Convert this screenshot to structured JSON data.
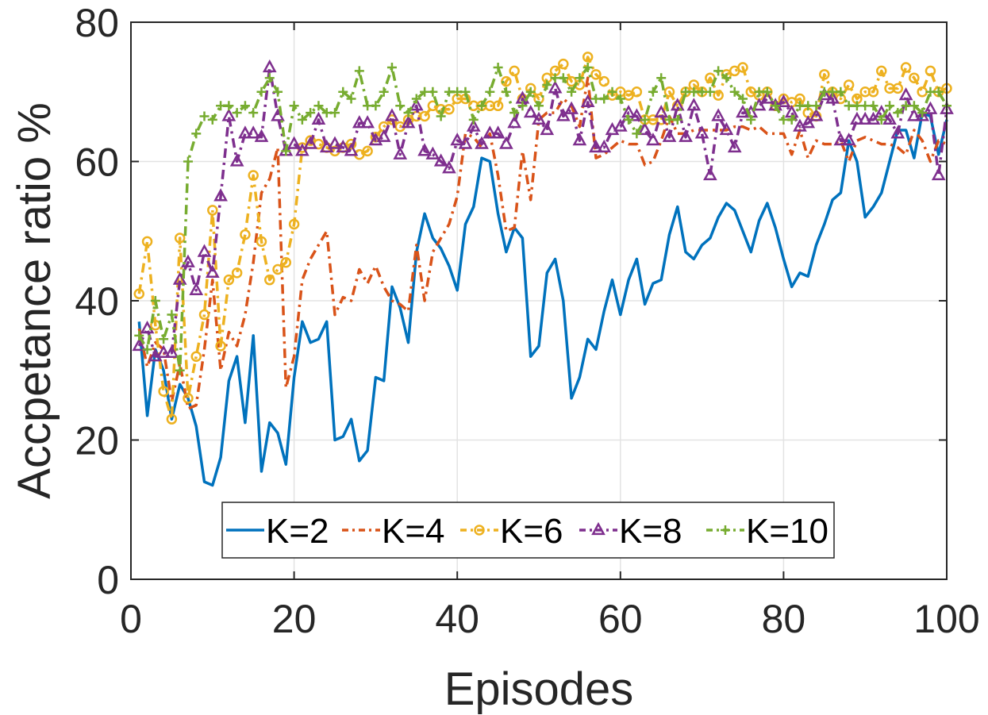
{
  "chart_data": {
    "type": "line",
    "xlabel": "Episodes",
    "ylabel": "Accpetance ratio %",
    "xlim": [
      0,
      100
    ],
    "ylim": [
      0,
      80
    ],
    "xticks": [
      0,
      20,
      40,
      60,
      80,
      100
    ],
    "yticks": [
      0,
      20,
      40,
      60,
      80
    ],
    "grid": true,
    "legend": {
      "placement": "bottom-center",
      "orientation": "horizontal"
    },
    "x": [
      1,
      2,
      3,
      4,
      5,
      6,
      7,
      8,
      9,
      10,
      11,
      12,
      13,
      14,
      15,
      16,
      17,
      18,
      19,
      20,
      21,
      22,
      23,
      24,
      25,
      26,
      27,
      28,
      29,
      30,
      31,
      32,
      33,
      34,
      35,
      36,
      37,
      38,
      39,
      40,
      41,
      42,
      43,
      44,
      45,
      46,
      47,
      48,
      49,
      50,
      51,
      52,
      53,
      54,
      55,
      56,
      57,
      58,
      59,
      60,
      61,
      62,
      63,
      64,
      65,
      66,
      67,
      68,
      69,
      70,
      71,
      72,
      73,
      74,
      75,
      76,
      77,
      78,
      79,
      80,
      81,
      82,
      83,
      84,
      85,
      86,
      87,
      88,
      89,
      90,
      91,
      92,
      93,
      94,
      95,
      96,
      97,
      98,
      99,
      100
    ],
    "series": [
      {
        "name": "K=2",
        "color": "#0072BD",
        "line_style": "solid",
        "marker": "none",
        "values": [
          37,
          23.5,
          33,
          30,
          23,
          28,
          26,
          22,
          14,
          13.5,
          17.5,
          28.5,
          32,
          22.5,
          35,
          15.5,
          22.5,
          21,
          16.5,
          29,
          37,
          34,
          34.5,
          37,
          20,
          20.5,
          23,
          17,
          18.5,
          29,
          28.5,
          42,
          39,
          34,
          47,
          52.5,
          49,
          47.5,
          45,
          41.5,
          51,
          53.5,
          60.5,
          60,
          52.5,
          47,
          50.5,
          49,
          32,
          33.5,
          44,
          46,
          40,
          26,
          29,
          34.5,
          33,
          38.5,
          43,
          38,
          43,
          46,
          39.5,
          42.5,
          43,
          49.5,
          53.5,
          47,
          46,
          48,
          49,
          52,
          54,
          53,
          50,
          47,
          51.5,
          54,
          50.5,
          46,
          42,
          44,
          43.5,
          48,
          51,
          54.5,
          55.5,
          63,
          60,
          52,
          53.5,
          55.5,
          60,
          64.5,
          64.5,
          60.5,
          67,
          66.5,
          61,
          66
        ]
      },
      {
        "name": "K=4",
        "color": "#D95319",
        "line_style": "dashdot",
        "marker": "none",
        "values": [
          36,
          30.5,
          34,
          33,
          25.5,
          31,
          24.5,
          25,
          33,
          43,
          30,
          35.5,
          33.5,
          38,
          45.5,
          55.5,
          57.5,
          62,
          27.5,
          32,
          43,
          46,
          48,
          50,
          38,
          40.5,
          40,
          44.5,
          42.5,
          45,
          42,
          40,
          39.5,
          38.5,
          48,
          40,
          47,
          49,
          51,
          55,
          64,
          63.5,
          62,
          64,
          58,
          50,
          50.5,
          61.5,
          54.5,
          66,
          67,
          67,
          69,
          68,
          65,
          72,
          60.5,
          61,
          62,
          63,
          62.5,
          62.5,
          59.5,
          60,
          63,
          66.5,
          64,
          64,
          64.5,
          64.5,
          64.5,
          64.5,
          64.5,
          65,
          65,
          64.5,
          65,
          64,
          64,
          64,
          61,
          64.5,
          60.5,
          63,
          62.5,
          62.5,
          63,
          60,
          63,
          63.5,
          63,
          62.5,
          62.5,
          62,
          61,
          64.5,
          63,
          60,
          63,
          62.5
        ]
      },
      {
        "name": "K=6",
        "color": "#EDB120",
        "line_style": "dashdot",
        "marker": "circle",
        "values": [
          41,
          48.5,
          36.5,
          27,
          23,
          49,
          26,
          32,
          38,
          53,
          33.5,
          43,
          44,
          49.5,
          58,
          48.5,
          43,
          44.5,
          45.5,
          51,
          62,
          63,
          62.5,
          62,
          61.5,
          62,
          62.5,
          61,
          61.5,
          63.5,
          65,
          66,
          65,
          66,
          66.5,
          66.5,
          68,
          67.5,
          67.5,
          69,
          69,
          68,
          68,
          68,
          68,
          71.5,
          73,
          69,
          70.5,
          69,
          72,
          73,
          74,
          71.5,
          71,
          75,
          72.5,
          71.5,
          69.5,
          70,
          69.5,
          70,
          66,
          66,
          66,
          70,
          68,
          70,
          71,
          70,
          72,
          69.5,
          72.5,
          73,
          73.5,
          70,
          69.5,
          70,
          68,
          69,
          68.5,
          69,
          67,
          66.5,
          72.5,
          70,
          69,
          71,
          69,
          70,
          70,
          73,
          70.5,
          70.5,
          73.5,
          72,
          70,
          73,
          70,
          70.5
        ]
      },
      {
        "name": "K=8",
        "color": "#7E2F8E",
        "line_style": "dashdot",
        "marker": "triangle",
        "values": [
          33.5,
          36,
          32,
          32.5,
          32.5,
          43,
          45.5,
          41.5,
          47,
          44,
          55,
          66.5,
          60,
          64,
          64,
          63.5,
          73.5,
          66.5,
          61.5,
          62.5,
          61.5,
          62.5,
          66,
          62,
          62.5,
          62,
          61.5,
          65.5,
          65.5,
          63,
          63.5,
          66.5,
          61,
          65.5,
          68,
          61.5,
          61,
          60,
          59,
          63,
          62.5,
          65,
          62.5,
          64,
          64,
          62.5,
          65.5,
          69,
          67,
          66,
          64.5,
          70.5,
          66.5,
          67.5,
          63,
          68.5,
          62,
          62,
          64.5,
          65,
          67,
          66.5,
          64.5,
          63,
          67,
          63.5,
          68,
          63.5,
          68,
          64,
          58,
          66.5,
          64.5,
          62,
          67,
          67,
          68,
          69,
          68,
          68.5,
          67,
          65,
          65.5,
          66.5,
          69.5,
          69,
          63,
          63,
          66,
          66,
          66,
          67,
          66,
          64,
          69.5,
          66.5,
          66.5,
          67.5,
          58,
          67.5
        ]
      },
      {
        "name": "K=10",
        "color": "#77AC30",
        "line_style": "dashdot",
        "marker": "plus",
        "values": [
          35,
          33,
          40,
          34.5,
          38,
          30,
          60,
          64,
          66.5,
          66,
          68,
          68,
          67,
          68,
          67,
          70,
          72,
          70,
          61.5,
          68,
          66,
          67,
          68,
          67,
          67,
          70,
          69,
          73,
          68,
          68,
          70,
          73.5,
          68,
          67,
          69,
          70,
          70,
          66.5,
          70,
          70,
          70,
          66,
          68,
          70,
          73.5,
          70,
          67,
          68,
          70,
          68,
          71,
          72,
          72,
          70,
          72,
          73.5,
          69,
          69,
          70,
          69,
          66,
          64,
          66,
          70,
          72,
          66,
          66,
          70,
          70,
          70,
          70,
          73,
          72,
          70,
          69,
          66,
          70,
          70,
          68,
          66,
          66,
          68,
          68,
          68,
          70,
          70,
          70,
          68,
          68,
          68,
          68,
          66,
          68,
          67,
          68,
          68,
          67,
          70,
          70,
          68
        ]
      }
    ]
  }
}
